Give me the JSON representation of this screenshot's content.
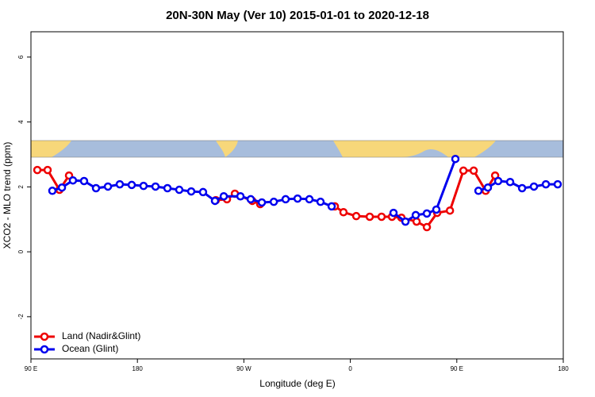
{
  "chart_data": {
    "type": "line",
    "title": "20N-30N May (Ver 10)   2015-01-01 to 2020-12-18",
    "x_label": "Longitude (deg E)",
    "y_label": "XCO2 - MLO trend (ppm)",
    "xlim": [
      90,
      540
    ],
    "ylim": [
      -3.3,
      6.78
    ],
    "xticks": [
      {
        "value": 90,
        "label": "90 E"
      },
      180,
      {
        "value": 270,
        "label": "90 W"
      },
      {
        "value": 360,
        "label": "0"
      },
      {
        "value": 450,
        "label": "90 E"
      },
      {
        "value": 540,
        "label": "180"
      }
    ],
    "yticks": [
      -2,
      0,
      2,
      4,
      6
    ],
    "legend": "bottomleft",
    "series": [
      {
        "name": "Land (Nadir&Glint)",
        "color": "#ee0000",
        "x": [
          95.4,
          104.1,
          114.1,
          122.2,
          null,
          246.3,
          255.7,
          262.4,
          277.1,
          283.8,
          null,
          346.9,
          354.2,
          365.0,
          376.4,
          386.4,
          395.2,
          403.2,
          416.0,
          424.7,
          433.4,
          444.2,
          455.6,
          464.3,
          474.4,
          482.4
        ],
        "values": [
          2.52,
          2.52,
          1.91,
          2.35,
          null,
          1.59,
          1.62,
          1.79,
          1.57,
          1.47,
          null,
          1.4,
          1.22,
          1.1,
          1.08,
          1.08,
          1.08,
          1.05,
          0.93,
          0.76,
          1.2,
          1.27,
          2.5,
          2.5,
          1.88,
          2.35
        ]
      },
      {
        "name": "Ocean (Glint)",
        "color": "#0000ee",
        "x": [
          108.1,
          116.2,
          125.5,
          134.9,
          145.0,
          155.1,
          165.1,
          175.2,
          185.2,
          195.3,
          205.4,
          215.4,
          225.5,
          235.5,
          245.6,
          253.0,
          267.1,
          275.8,
          285.2,
          295.3,
          305.3,
          315.4,
          325.4,
          334.8,
          344.2,
          null,
          396.5,
          406.6,
          415.3,
          424.7,
          432.7,
          448.8,
          null,
          468.3,
          476.3,
          485.0,
          495.1,
          505.2,
          515.2,
          525.3,
          535.3
        ],
        "values": [
          1.88,
          1.98,
          2.2,
          2.18,
          1.96,
          2.01,
          2.08,
          2.06,
          2.03,
          2.01,
          1.96,
          1.91,
          1.86,
          1.84,
          1.57,
          1.71,
          1.71,
          1.62,
          1.52,
          1.54,
          1.62,
          1.64,
          1.62,
          1.54,
          1.4,
          null,
          1.2,
          0.93,
          1.13,
          1.18,
          1.3,
          2.86,
          null,
          1.88,
          1.98,
          2.18,
          2.15,
          1.96,
          2.01,
          2.08,
          2.08
        ]
      }
    ]
  }
}
